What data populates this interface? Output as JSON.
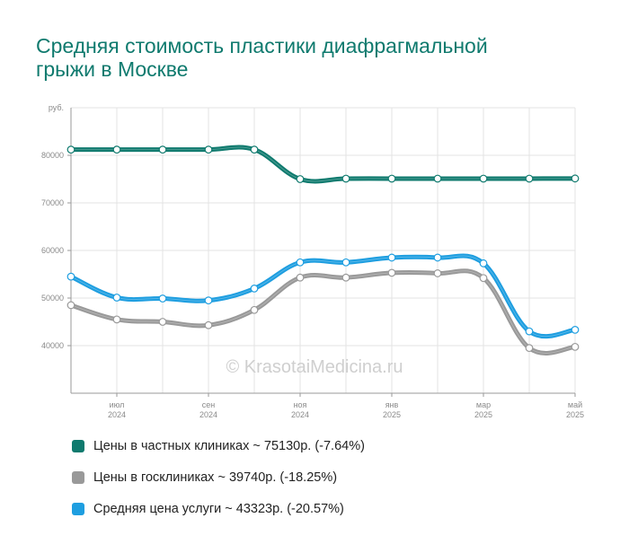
{
  "title_lines": [
    "Средняя стоимость пластики диафрагмальной",
    "грыжи в Москве"
  ],
  "watermark": "© KrasotaiMedicina.ru",
  "legend": [
    {
      "label": "Цены в частных клиниках ~ 75130р. (-7.64%)",
      "color": "#0f7a6e"
    },
    {
      "label": "Цены в госклиниках ~ 39740р. (-18.25%)",
      "color": "#999999"
    },
    {
      "label": "Средняя цена услуги ~ 43323р. (-20.57%)",
      "color": "#1e9ee0"
    }
  ],
  "chart_data": {
    "type": "line",
    "x": [
      "2024-06",
      "2024-07",
      "2024-08",
      "2024-09",
      "2024-10",
      "2024-11",
      "2024-12",
      "2025-01",
      "2025-02",
      "2025-03",
      "2025-04",
      "2025-05"
    ],
    "x_tick_labels": [
      {
        "index": 1,
        "month": "июл",
        "year": "2024"
      },
      {
        "index": 3,
        "month": "сен",
        "year": "2024"
      },
      {
        "index": 5,
        "month": "ноя",
        "year": "2024"
      },
      {
        "index": 7,
        "month": "янв",
        "year": "2025"
      },
      {
        "index": 9,
        "month": "мар",
        "year": "2025"
      },
      {
        "index": 11,
        "month": "май",
        "year": "2025"
      }
    ],
    "y_unit_label": "руб.",
    "y_ticks": [
      40000,
      50000,
      60000,
      70000,
      80000
    ],
    "ylim": [
      30000,
      90000
    ],
    "grid": true,
    "series": [
      {
        "name": "Цены в частных клиниках",
        "color": "#0f7a6e",
        "values": [
          81200,
          81200,
          81200,
          81200,
          81200,
          75000,
          75100,
          75100,
          75100,
          75100,
          75100,
          75130
        ]
      },
      {
        "name": "Средняя цена услуги",
        "color": "#1e9ee0",
        "values": [
          54500,
          50100,
          49900,
          49500,
          52000,
          57500,
          57500,
          58500,
          58500,
          57300,
          43000,
          43323
        ]
      },
      {
        "name": "Цены в госклиниках",
        "color": "#999999",
        "values": [
          48500,
          45500,
          45000,
          44300,
          47500,
          54300,
          54300,
          55300,
          55200,
          54200,
          39500,
          39740
        ]
      }
    ]
  }
}
